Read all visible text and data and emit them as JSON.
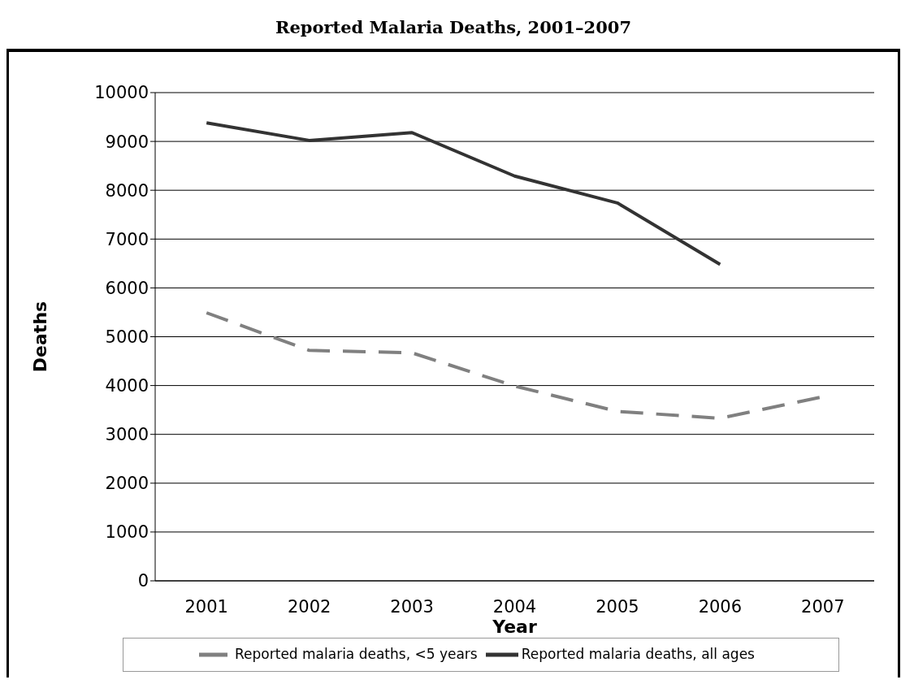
{
  "chart_data": {
    "type": "line",
    "title": "Reported Malaria Deaths, 2001–2007",
    "xlabel": "Year",
    "ylabel": "Deaths",
    "categories": [
      "2001",
      "2002",
      "2003",
      "2004",
      "2005",
      "2006",
      "2007"
    ],
    "series": [
      {
        "name": "Reported malaria deaths, all ages",
        "color": "#333333",
        "line_style": "solid",
        "values": [
          9380,
          9020,
          9180,
          8290,
          7740,
          6480,
          null
        ]
      },
      {
        "name": "Reported malaria deaths, <5 years",
        "color": "#808080",
        "line_style": "dashed",
        "values": [
          5490,
          4720,
          4670,
          3990,
          3470,
          3330,
          3770
        ]
      }
    ],
    "ylim": [
      0,
      10000
    ],
    "yticks": [
      0,
      1000,
      2000,
      3000,
      4000,
      5000,
      6000,
      7000,
      8000,
      9000,
      10000
    ],
    "grid": "y",
    "legend": "bottom",
    "marker": "none"
  }
}
